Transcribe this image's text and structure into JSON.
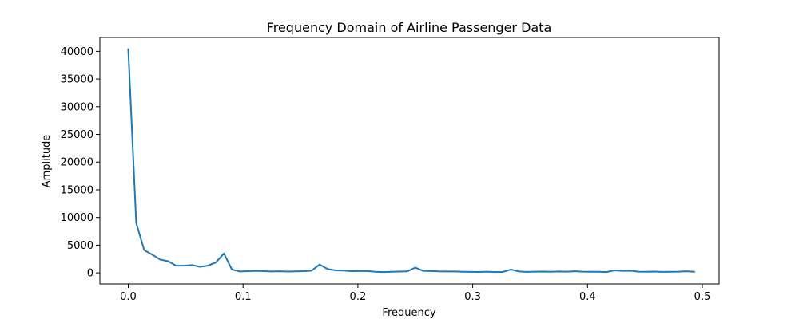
{
  "chart_data": {
    "type": "line",
    "title": "Frequency Domain of Airline Passenger Data",
    "xlabel": "Frequency",
    "ylabel": "Amplitude",
    "xlim": [
      -0.0247,
      0.5146
    ],
    "ylim": [
      -2000,
      42500
    ],
    "xticks": [
      0.0,
      0.1,
      0.2,
      0.3,
      0.4,
      0.5
    ],
    "xtick_labels": [
      "0.0",
      "0.1",
      "0.2",
      "0.3",
      "0.4",
      "0.5"
    ],
    "yticks": [
      0,
      5000,
      10000,
      15000,
      20000,
      25000,
      30000,
      35000,
      40000
    ],
    "ytick_labels": [
      "0",
      "5000",
      "10000",
      "15000",
      "20000",
      "25000",
      "30000",
      "35000",
      "40000"
    ],
    "grid": false,
    "line_color": "#1f77b4",
    "series": [
      {
        "x": [
          0.0,
          0.00694,
          0.01389,
          0.02083,
          0.02778,
          0.03472,
          0.04167,
          0.04861,
          0.05556,
          0.0625,
          0.06944,
          0.07639,
          0.08333,
          0.09028,
          0.09722,
          0.10417,
          0.11111,
          0.11806,
          0.125,
          0.13194,
          0.13889,
          0.14583,
          0.15278,
          0.15972,
          0.16667,
          0.17361,
          0.18056,
          0.1875,
          0.19444,
          0.20139,
          0.20833,
          0.21528,
          0.22222,
          0.22917,
          0.23611,
          0.24306,
          0.25,
          0.25694,
          0.26389,
          0.27083,
          0.27778,
          0.28472,
          0.29167,
          0.29861,
          0.30556,
          0.3125,
          0.31944,
          0.32639,
          0.33333,
          0.34028,
          0.34722,
          0.35417,
          0.36111,
          0.36806,
          0.375,
          0.38194,
          0.38889,
          0.39583,
          0.40278,
          0.40972,
          0.41667,
          0.42361,
          0.43056,
          0.4375,
          0.44444,
          0.45139,
          0.45833,
          0.46528,
          0.47222,
          0.47917,
          0.48611,
          0.49306
        ],
        "y": [
          40400,
          9000,
          4100,
          3300,
          2400,
          2100,
          1300,
          1300,
          1400,
          1100,
          1300,
          1900,
          3500,
          600,
          250,
          300,
          350,
          300,
          250,
          280,
          240,
          260,
          300,
          400,
          1500,
          700,
          450,
          420,
          300,
          330,
          320,
          200,
          150,
          200,
          230,
          280,
          950,
          350,
          320,
          260,
          250,
          250,
          200,
          180,
          160,
          220,
          150,
          180,
          600,
          250,
          180,
          220,
          230,
          200,
          250,
          210,
          280,
          220,
          200,
          200,
          150,
          450,
          350,
          380,
          220,
          200,
          230,
          180,
          200,
          220,
          280,
          200
        ]
      }
    ]
  }
}
